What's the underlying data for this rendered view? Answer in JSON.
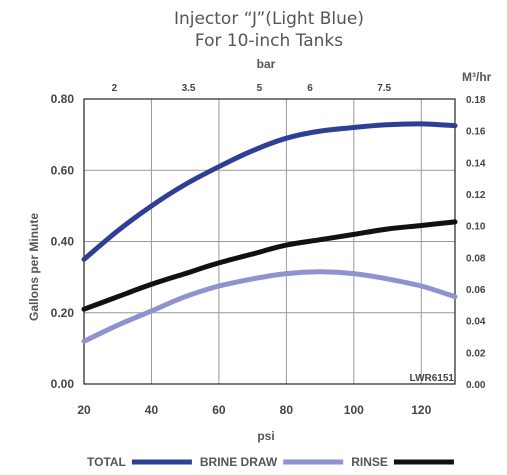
{
  "chart_data": {
    "type": "line",
    "title_lines": [
      "Injector “J”(Light Blue)",
      "For 10-inch Tanks"
    ],
    "xlabel": "psi",
    "x2label": "bar",
    "ylabel": "Gallons per Minute",
    "y2label": "M³/hr",
    "xlim": [
      20,
      130
    ],
    "ylim": [
      0,
      0.8
    ],
    "y2lim": [
      0,
      0.18
    ],
    "x_ticks": [
      "20",
      "40",
      "60",
      "80",
      "100",
      "120"
    ],
    "x_tick_values": [
      20,
      40,
      60,
      80,
      100,
      120
    ],
    "y_ticks": [
      "0.00",
      "0.20",
      "0.40",
      "0.60",
      "0.80"
    ],
    "y_tick_values": [
      0,
      0.2,
      0.4,
      0.6,
      0.8
    ],
    "x2_ticks": [
      "2",
      "3.5",
      "5",
      "6",
      "7.5"
    ],
    "x2_tick_psi": [
      29,
      51,
      72,
      87,
      109
    ],
    "y2_ticks": [
      "0.00",
      "0.02",
      "0.04",
      "0.06",
      "0.08",
      "0.10",
      "0.12",
      "0.14",
      "0.16",
      "0.18"
    ],
    "y2_tick_values": [
      0,
      0.02,
      0.04,
      0.06,
      0.08,
      0.1,
      0.12,
      0.14,
      0.16,
      0.18
    ],
    "grid": true,
    "annotation": "LWR6151",
    "x": [
      20,
      30,
      40,
      50,
      60,
      70,
      80,
      90,
      100,
      110,
      120,
      130
    ],
    "series": [
      {
        "name": "TOTAL",
        "color": "#2e3f95",
        "values": [
          0.35,
          0.43,
          0.5,
          0.56,
          0.61,
          0.655,
          0.69,
          0.71,
          0.72,
          0.728,
          0.73,
          0.725
        ]
      },
      {
        "name": "BRINE DRAW",
        "color": "#8e92cf",
        "values": [
          0.12,
          0.165,
          0.205,
          0.245,
          0.275,
          0.295,
          0.31,
          0.315,
          0.31,
          0.295,
          0.275,
          0.245
        ]
      },
      {
        "name": "RINSE",
        "color": "#111111",
        "values": [
          0.21,
          0.245,
          0.28,
          0.31,
          0.34,
          0.365,
          0.39,
          0.405,
          0.42,
          0.435,
          0.445,
          0.455
        ]
      }
    ],
    "legend": "bottom"
  }
}
